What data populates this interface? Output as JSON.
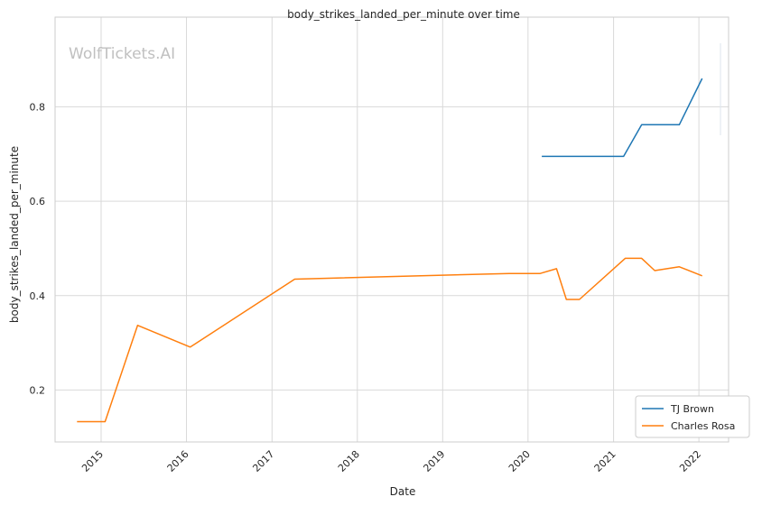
{
  "chart_data": {
    "type": "line",
    "title": "body_strikes_landed_per_minute over time",
    "xlabel": "Date",
    "ylabel": "body_strikes_landed_per_minute",
    "x_ticks": [
      "2015",
      "2016",
      "2017",
      "2018",
      "2019",
      "2020",
      "2021",
      "2022"
    ],
    "y_ticks": [
      "0.2",
      "0.4",
      "0.6",
      "0.8"
    ],
    "xlim": [
      "2014-06-18",
      "2022-05-08"
    ],
    "ylim": [
      0.09,
      0.99
    ],
    "grid": true,
    "legend_position": "bottom-right",
    "watermark": "WolfTickets.AI",
    "series": [
      {
        "name": "TJ Brown",
        "color": "#1f77b4",
        "points": [
          {
            "x": "2020-02-29",
            "y": 0.695
          },
          {
            "x": "2021-02-13",
            "y": 0.695
          },
          {
            "x": "2021-05-01",
            "y": 0.762
          },
          {
            "x": "2021-10-09",
            "y": 0.762
          },
          {
            "x": "2022-01-15",
            "y": 0.86
          }
        ]
      },
      {
        "name": "Charles Rosa",
        "color": "#ff7f0e",
        "points": [
          {
            "x": "2014-09-20",
            "y": 0.133
          },
          {
            "x": "2015-01-18",
            "y": 0.133
          },
          {
            "x": "2015-06-06",
            "y": 0.337
          },
          {
            "x": "2016-01-17",
            "y": 0.291
          },
          {
            "x": "2017-04-08",
            "y": 0.435
          },
          {
            "x": "2019-10-12",
            "y": 0.447
          },
          {
            "x": "2020-02-22",
            "y": 0.447
          },
          {
            "x": "2020-05-02",
            "y": 0.457
          },
          {
            "x": "2020-06-13",
            "y": 0.392
          },
          {
            "x": "2020-08-08",
            "y": 0.392
          },
          {
            "x": "2021-02-20",
            "y": 0.479
          },
          {
            "x": "2021-05-01",
            "y": 0.479
          },
          {
            "x": "2021-06-26",
            "y": 0.453
          },
          {
            "x": "2021-10-09",
            "y": 0.461
          },
          {
            "x": "2022-01-15",
            "y": 0.442
          }
        ]
      }
    ]
  }
}
